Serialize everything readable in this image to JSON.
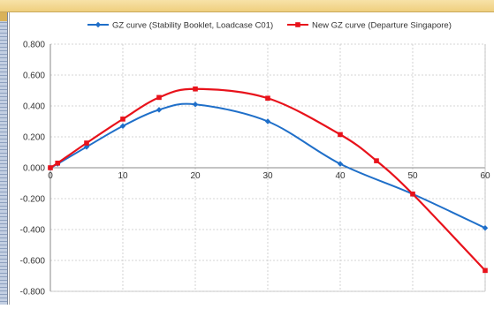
{
  "chart_data": {
    "type": "line",
    "xlim": [
      0,
      60
    ],
    "ylim": [
      -0.8,
      0.8
    ],
    "x_ticks": [
      0,
      10,
      20,
      30,
      40,
      50,
      60
    ],
    "x_tick_labels": [
      "0",
      "10",
      "20",
      "30",
      "40",
      "50",
      "60"
    ],
    "y_ticks": [
      0.8,
      0.6,
      0.4,
      0.2,
      0.0,
      -0.2,
      -0.4,
      -0.6,
      -0.8
    ],
    "y_tick_labels": [
      "0.800",
      "0.600",
      "0.400",
      "0.200",
      "0.000",
      "-0.200",
      "-0.400",
      "-0.600",
      "-0.800"
    ],
    "grid": true,
    "legend_position": "top",
    "series": [
      {
        "name": "GZ curve (Stability Booklet, Loadcase C01)",
        "color": "#1f6fc9",
        "x": [
          0,
          1,
          5,
          10,
          15,
          20,
          30,
          40,
          50,
          60
        ],
        "y": [
          0.0,
          0.025,
          0.135,
          0.27,
          0.375,
          0.41,
          0.3,
          0.025,
          -0.17,
          -0.39
        ]
      },
      {
        "name": "New GZ curve (Departure Singapore)",
        "color": "#e8121b",
        "x": [
          0,
          1,
          5,
          10,
          15,
          20,
          30,
          40,
          45,
          50,
          60
        ],
        "y": [
          0.0,
          0.03,
          0.16,
          0.315,
          0.455,
          0.51,
          0.45,
          0.215,
          0.045,
          -0.17,
          -0.665
        ]
      }
    ]
  }
}
